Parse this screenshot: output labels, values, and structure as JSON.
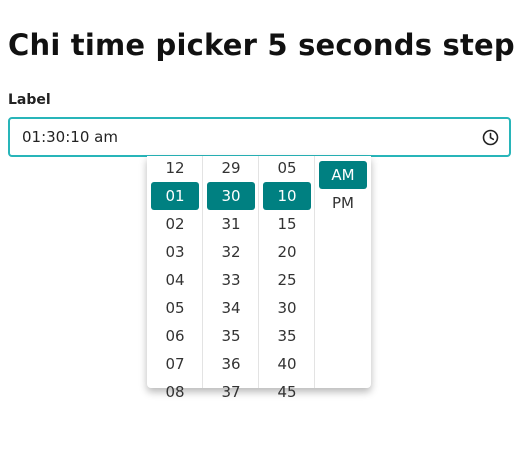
{
  "page": {
    "title": "Chi time picker 5 seconds step"
  },
  "field": {
    "label": "Label",
    "value": "01:30:10 am",
    "icon": "clock-icon",
    "accent_color": "#28b5b9"
  },
  "picker": {
    "selected_color": "#008081",
    "hours": [
      "12",
      "01",
      "02",
      "03",
      "04",
      "05",
      "06",
      "07",
      "08"
    ],
    "hours_selected": "01",
    "minutes": [
      "29",
      "30",
      "31",
      "32",
      "33",
      "34",
      "35",
      "36",
      "37"
    ],
    "minutes_selected": "30",
    "seconds": [
      "05",
      "10",
      "15",
      "20",
      "25",
      "30",
      "35",
      "40",
      "45"
    ],
    "seconds_selected": "10",
    "periods": [
      "AM",
      "PM"
    ],
    "period_selected": "AM"
  }
}
